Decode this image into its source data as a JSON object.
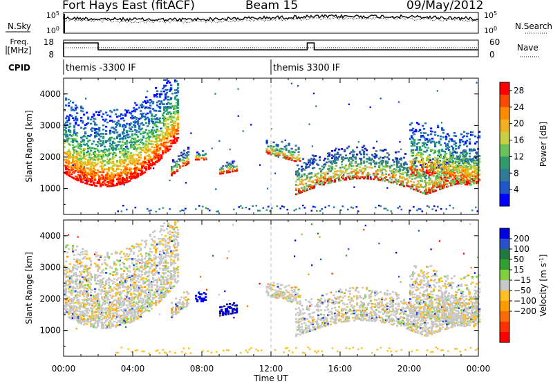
{
  "header": {
    "station": "Fort Hays East (fitACF)",
    "beam": "Beam 15",
    "date": "09/May/2012"
  },
  "strip_panels": {
    "noise": {
      "left_label": "N.Sky",
      "right_label": "N.Search",
      "left_ticks": [
        "10^5",
        "10^0"
      ],
      "right_ticks": [
        "10^5",
        "10^0"
      ]
    },
    "freq": {
      "left_label_line1": "Freq.",
      "left_label_line2": "[MHz]",
      "right_label": "Nave",
      "left_ticks": [
        "18",
        "8"
      ],
      "right_ticks": [
        "60",
        "0"
      ]
    },
    "cpid": {
      "label": "CPID",
      "programs": [
        {
          "name": "themis -3300 IF",
          "start_hour": 0
        },
        {
          "name": "themis 3300 IF",
          "start_hour": 12
        }
      ]
    }
  },
  "chart_data": [
    {
      "type": "heatmap",
      "title": "Power",
      "ylabel": "Slant Range [km]",
      "ylim": [
        180,
        4500
      ],
      "yticks": [
        "1000",
        "2000",
        "3000",
        "4000"
      ],
      "xlim_hours": [
        0,
        24
      ],
      "colorbar": {
        "label": "Power [dB]",
        "ticks": [
          "4",
          "8",
          "12",
          "16",
          "20",
          "24",
          "28"
        ],
        "range": [
          0,
          30
        ],
        "colors": [
          "#0000ff",
          "#1e55c8",
          "#2e7a98",
          "#2f9b6a",
          "#6ac25a",
          "#c8d040",
          "#f0b020",
          "#ff8a00",
          "#ff4800",
          "#ff0000"
        ]
      }
    },
    {
      "type": "heatmap",
      "title": "Velocity",
      "ylabel": "Slant Range [km]",
      "ylim": [
        180,
        4500
      ],
      "yticks": [
        "1000",
        "2000",
        "3000",
        "4000"
      ],
      "xlim_hours": [
        0,
        24
      ],
      "colorbar": {
        "label": "Velocity [m s^-1]",
        "ticks": [
          "200",
          "100",
          "50",
          "15",
          "-15",
          "-50",
          "-100",
          "-200"
        ],
        "colors": [
          "#0000e0",
          "#2850d0",
          "#207a40",
          "#30a030",
          "#80d040",
          "#c8c8c8",
          "#ffc020",
          "#ff9a00",
          "#ff6a00",
          "#ff3000",
          "#ff0000"
        ]
      }
    }
  ],
  "x_axis": {
    "label": "Time UT",
    "ticks": [
      "00:00",
      "04:00",
      "08:00",
      "12:00",
      "16:00",
      "20:00",
      "00:00"
    ]
  }
}
